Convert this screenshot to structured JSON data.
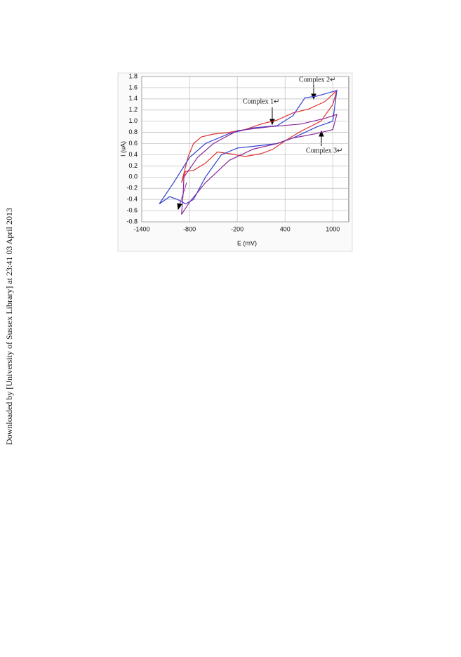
{
  "watermark": "Downloaded by [University of Sussex Library] at 23:41 03 April 2013",
  "chart_data": {
    "type": "line",
    "x_label": "E (mV)",
    "y_label": "I (uA)",
    "xlim": [
      -1400,
      1200
    ],
    "ylim": [
      -0.8,
      1.8
    ],
    "xticks": [
      -1400,
      -800,
      -200,
      400,
      1000
    ],
    "yticks": [
      1.8,
      1.6,
      1.4,
      1.2,
      {
        "value": 1,
        "label": "1.0"
      },
      0.8,
      0.6,
      0.4,
      0.2,
      {
        "value": 0,
        "label": "0.0"
      },
      -0.2,
      -0.4,
      -0.6,
      -0.8
    ],
    "grid": true,
    "series": [
      {
        "name": "Complex 1",
        "color": "#e03030",
        "x": [
          -900,
          -820,
          -750,
          -650,
          -500,
          -300,
          -100,
          100,
          300,
          500,
          700,
          900,
          1050,
          1000,
          850,
          600,
          400,
          250,
          100,
          -100,
          -300,
          -450,
          -600,
          -750,
          -850,
          -900
        ],
        "values": [
          -0.1,
          0.35,
          0.6,
          0.72,
          0.77,
          0.8,
          0.85,
          0.95,
          1.02,
          1.15,
          1.22,
          1.35,
          1.55,
          1.3,
          1.0,
          0.82,
          0.65,
          0.5,
          0.42,
          0.37,
          0.42,
          0.45,
          0.25,
          0.12,
          0.1,
          -0.1
        ]
      },
      {
        "name": "Complex 2",
        "color": "#3040d0",
        "x": [
          -1180,
          -1000,
          -800,
          -600,
          -300,
          0,
          300,
          500,
          650,
          800,
          1050,
          1000,
          800,
          500,
          300,
          0,
          -200,
          -400,
          -600,
          -750,
          -850,
          -950,
          -1050,
          -1180
        ],
        "values": [
          -0.48,
          -0.1,
          0.35,
          0.6,
          0.78,
          0.88,
          0.92,
          1.1,
          1.42,
          1.45,
          1.55,
          1.0,
          0.9,
          0.7,
          0.6,
          0.55,
          0.52,
          0.4,
          0.0,
          -0.4,
          -0.48,
          -0.4,
          -0.35,
          -0.48
        ]
      },
      {
        "name": "Complex 3",
        "color": "#8a2a9a",
        "x": [
          -870,
          -700,
          -500,
          -200,
          200,
          600,
          900,
          1050,
          1000,
          800,
          500,
          300,
          0,
          -300,
          -600,
          -800,
          -900,
          -880,
          -870
        ],
        "values": [
          0.0,
          0.35,
          0.6,
          0.83,
          0.9,
          0.95,
          1.05,
          1.12,
          0.85,
          0.78,
          0.7,
          0.6,
          0.5,
          0.3,
          -0.1,
          -0.45,
          -0.67,
          -0.3,
          0.0
        ]
      }
    ],
    "annotations": [
      "Complex 2↵",
      "Complex 1↵",
      "Complex 3↵"
    ]
  }
}
